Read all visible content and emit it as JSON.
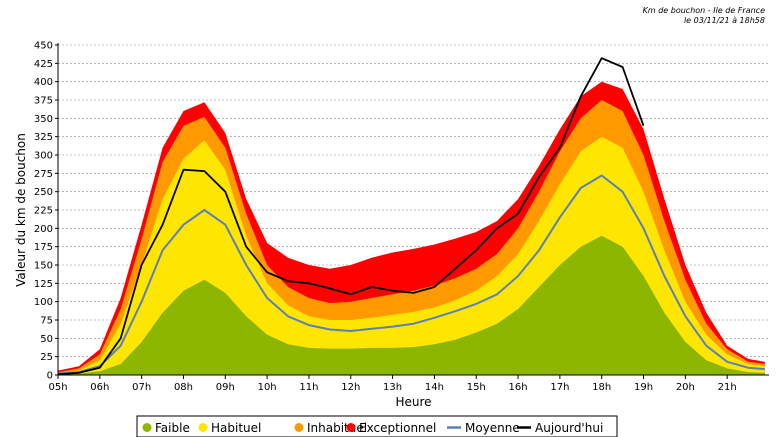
{
  "header": {
    "line1": "Km de bouchon - Ile de France",
    "line2": "le 03/11/21 à 18h58"
  },
  "chart_data": {
    "type": "area",
    "xlabel": "Heure",
    "ylabel": "Valeur du  km de bouchon",
    "x_tick_labels": [
      "05h",
      "06h",
      "07h",
      "08h",
      "09h",
      "10h",
      "11h",
      "12h",
      "13h",
      "14h",
      "15h",
      "16h",
      "17h",
      "18h",
      "19h",
      "20h",
      "21h"
    ],
    "y_ticks": [
      0,
      25,
      50,
      75,
      100,
      125,
      150,
      175,
      200,
      225,
      250,
      275,
      300,
      325,
      350,
      375,
      400,
      425,
      450
    ],
    "ylim": [
      0,
      450
    ],
    "xlim": [
      5,
      22
    ],
    "grid": true,
    "legend_position": "bottom",
    "x": [
      5.0,
      5.5,
      6.0,
      6.5,
      7.0,
      7.5,
      8.0,
      8.5,
      9.0,
      9.5,
      10.0,
      10.5,
      11.0,
      11.5,
      12.0,
      12.5,
      13.0,
      13.5,
      14.0,
      14.5,
      15.0,
      15.5,
      16.0,
      16.5,
      17.0,
      17.5,
      18.0,
      18.5,
      19.0,
      19.5,
      20.0,
      20.5,
      21.0,
      21.5,
      21.9
    ],
    "series": [
      {
        "name": "Faible",
        "color": "#8db600",
        "kind": "band",
        "values": [
          2,
          2,
          5,
          15,
          45,
          85,
          115,
          130,
          112,
          80,
          55,
          42,
          37,
          36,
          36,
          37,
          37,
          38,
          42,
          48,
          58,
          70,
          90,
          120,
          150,
          175,
          190,
          175,
          135,
          85,
          45,
          20,
          9,
          4,
          3
        ]
      },
      {
        "name": "Habituel",
        "color": "#ffe600",
        "kind": "band",
        "values": [
          3,
          6,
          20,
          70,
          150,
          240,
          295,
          320,
          280,
          190,
          125,
          95,
          80,
          75,
          75,
          78,
          82,
          86,
          92,
          102,
          115,
          135,
          165,
          210,
          260,
          305,
          325,
          310,
          250,
          170,
          100,
          55,
          28,
          15,
          12
        ]
      },
      {
        "name": "Inhabituel",
        "color": "#ff9900",
        "kind": "band",
        "values": [
          4,
          9,
          28,
          90,
          185,
          290,
          340,
          352,
          310,
          220,
          150,
          120,
          105,
          98,
          100,
          105,
          110,
          115,
          122,
          132,
          145,
          165,
          200,
          250,
          305,
          350,
          375,
          360,
          300,
          210,
          130,
          70,
          35,
          18,
          15
        ]
      },
      {
        "name": "Exceptionnel",
        "color": "#ff0000",
        "kind": "band",
        "values": [
          6,
          12,
          35,
          105,
          205,
          310,
          360,
          372,
          330,
          240,
          180,
          160,
          150,
          145,
          150,
          160,
          167,
          172,
          178,
          186,
          195,
          210,
          240,
          285,
          335,
          380,
          400,
          390,
          335,
          240,
          150,
          85,
          40,
          22,
          18
        ]
      },
      {
        "name": "Moyenne",
        "color": "#5b7fb8",
        "kind": "line",
        "values": [
          2,
          4,
          12,
          40,
          100,
          170,
          205,
          225,
          205,
          150,
          105,
          80,
          68,
          62,
          60,
          63,
          66,
          70,
          78,
          87,
          97,
          110,
          135,
          170,
          215,
          255,
          272,
          250,
          200,
          135,
          80,
          40,
          18,
          10,
          8
        ]
      },
      {
        "name": "Aujourd'hui",
        "color": "#000000",
        "kind": "line",
        "values": [
          1,
          3,
          10,
          50,
          150,
          205,
          280,
          278,
          250,
          175,
          140,
          128,
          125,
          118,
          110,
          120,
          115,
          112,
          120,
          145,
          170,
          200,
          220,
          270,
          310,
          380,
          432,
          420,
          340,
          null,
          null,
          null,
          null,
          null,
          null
        ]
      }
    ]
  }
}
